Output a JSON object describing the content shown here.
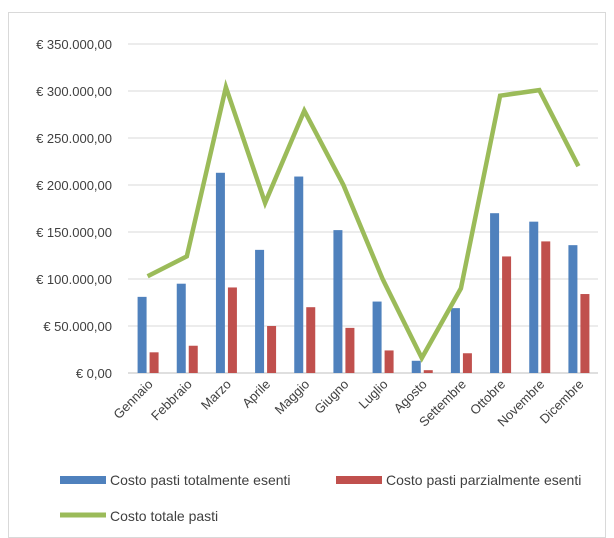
{
  "chart_data": {
    "type": "bar",
    "title": "",
    "xlabel": "",
    "ylabel": "",
    "categories": [
      "Gennaio",
      "Febbraio",
      "Marzo",
      "Aprile",
      "Maggio",
      "Giugno",
      "Luglio",
      "Agosto",
      "Settembre",
      "Ottobre",
      "Novembre",
      "Dicembre"
    ],
    "ylim": [
      0,
      350000
    ],
    "y_ticks": [
      0,
      50000,
      100000,
      150000,
      200000,
      250000,
      300000,
      350000
    ],
    "y_tick_labels": [
      "€ 0,00",
      "€ 50.000,00",
      "€ 100.000,00",
      "€ 150.000,00",
      "€ 200.000,00",
      "€ 250.000,00",
      "€ 300.000,00",
      "€ 350.000,00"
    ],
    "grid": true,
    "legend_position": "bottom",
    "series": [
      {
        "name": "Costo pasti totalmente esenti",
        "type": "bar",
        "color": "#4f81bd",
        "values": [
          81000,
          95000,
          213000,
          131000,
          209000,
          152000,
          76000,
          13000,
          69000,
          170000,
          161000,
          136000
        ]
      },
      {
        "name": "Costo pasti parzialmente esenti",
        "type": "bar",
        "color": "#c0504d",
        "values": [
          22000,
          29000,
          91000,
          50000,
          70000,
          48000,
          24000,
          3000,
          21000,
          124000,
          140000,
          84000
        ]
      },
      {
        "name": "Costo totale pasti",
        "type": "line",
        "color": "#9bbb59",
        "values": [
          103000,
          124000,
          304000,
          181000,
          279000,
          200000,
          100000,
          16000,
          90000,
          295000,
          301000,
          220000
        ]
      }
    ]
  }
}
